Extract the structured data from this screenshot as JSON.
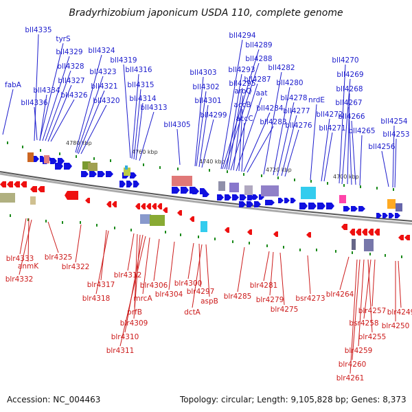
{
  "title": "Bradyrhizobium japonicum USDA 110, complete genome",
  "footer": {
    "accession": "Accession: NC_004463",
    "stats": "Topology: circular; Length: 9,105,828 bp; Genes: 8,373"
  },
  "ruler_labels": [
    "4780 kbp",
    "4760 kbp",
    "4740 kbp",
    "4720 kbp",
    "4700 kbp"
  ],
  "colors": {
    "forward": "#1010e0",
    "reverse": "#ee1010",
    "backbone": "#909090"
  },
  "top_labels": [
    "bll4335",
    "tyrS",
    "bll4329",
    "bll4328",
    "bll4327",
    "bll4334",
    "bll4326",
    "bll4336",
    "fabA",
    "bll4324",
    "bll4323",
    "bll4321",
    "bll4320",
    "bll4319",
    "bll4316",
    "bll4315",
    "bll4314",
    "bll4313",
    "bll4305",
    "bll4303",
    "bll4302",
    "bll4301",
    "bll4299",
    "bll4294",
    "bll4289",
    "bll4288",
    "bll4293",
    "bll4295",
    "bll4287",
    "aroQ",
    "aat",
    "accB",
    "accC",
    "bll4284",
    "bll4283",
    "bll4282",
    "bll4280",
    "bll4278",
    "bll4277",
    "bll4276",
    "nrdE",
    "bll4272",
    "bll4271",
    "bll4270",
    "bll4269",
    "bll4268",
    "bll4267",
    "bll4266",
    "bll4265",
    "bll4254",
    "bll4253",
    "bll4256"
  ],
  "bottom_labels": [
    "blr4333",
    "anmK",
    "blr4332",
    "blr4325",
    "blr4322",
    "blr4317",
    "blr4318",
    "blr4312",
    "prfB",
    "blr4309",
    "blr4310",
    "blr4311",
    "mrcA",
    "blr4306",
    "blr4304",
    "blr4300",
    "blr4297",
    "dctA",
    "aspB",
    "blr4285",
    "blr4281",
    "blr4279",
    "blr4275",
    "bsr4273",
    "blr4264",
    "blr4257",
    "bsr4258",
    "blr4255",
    "blr4259",
    "blr4260",
    "blr4261",
    "blr4249",
    "blr4250"
  ]
}
